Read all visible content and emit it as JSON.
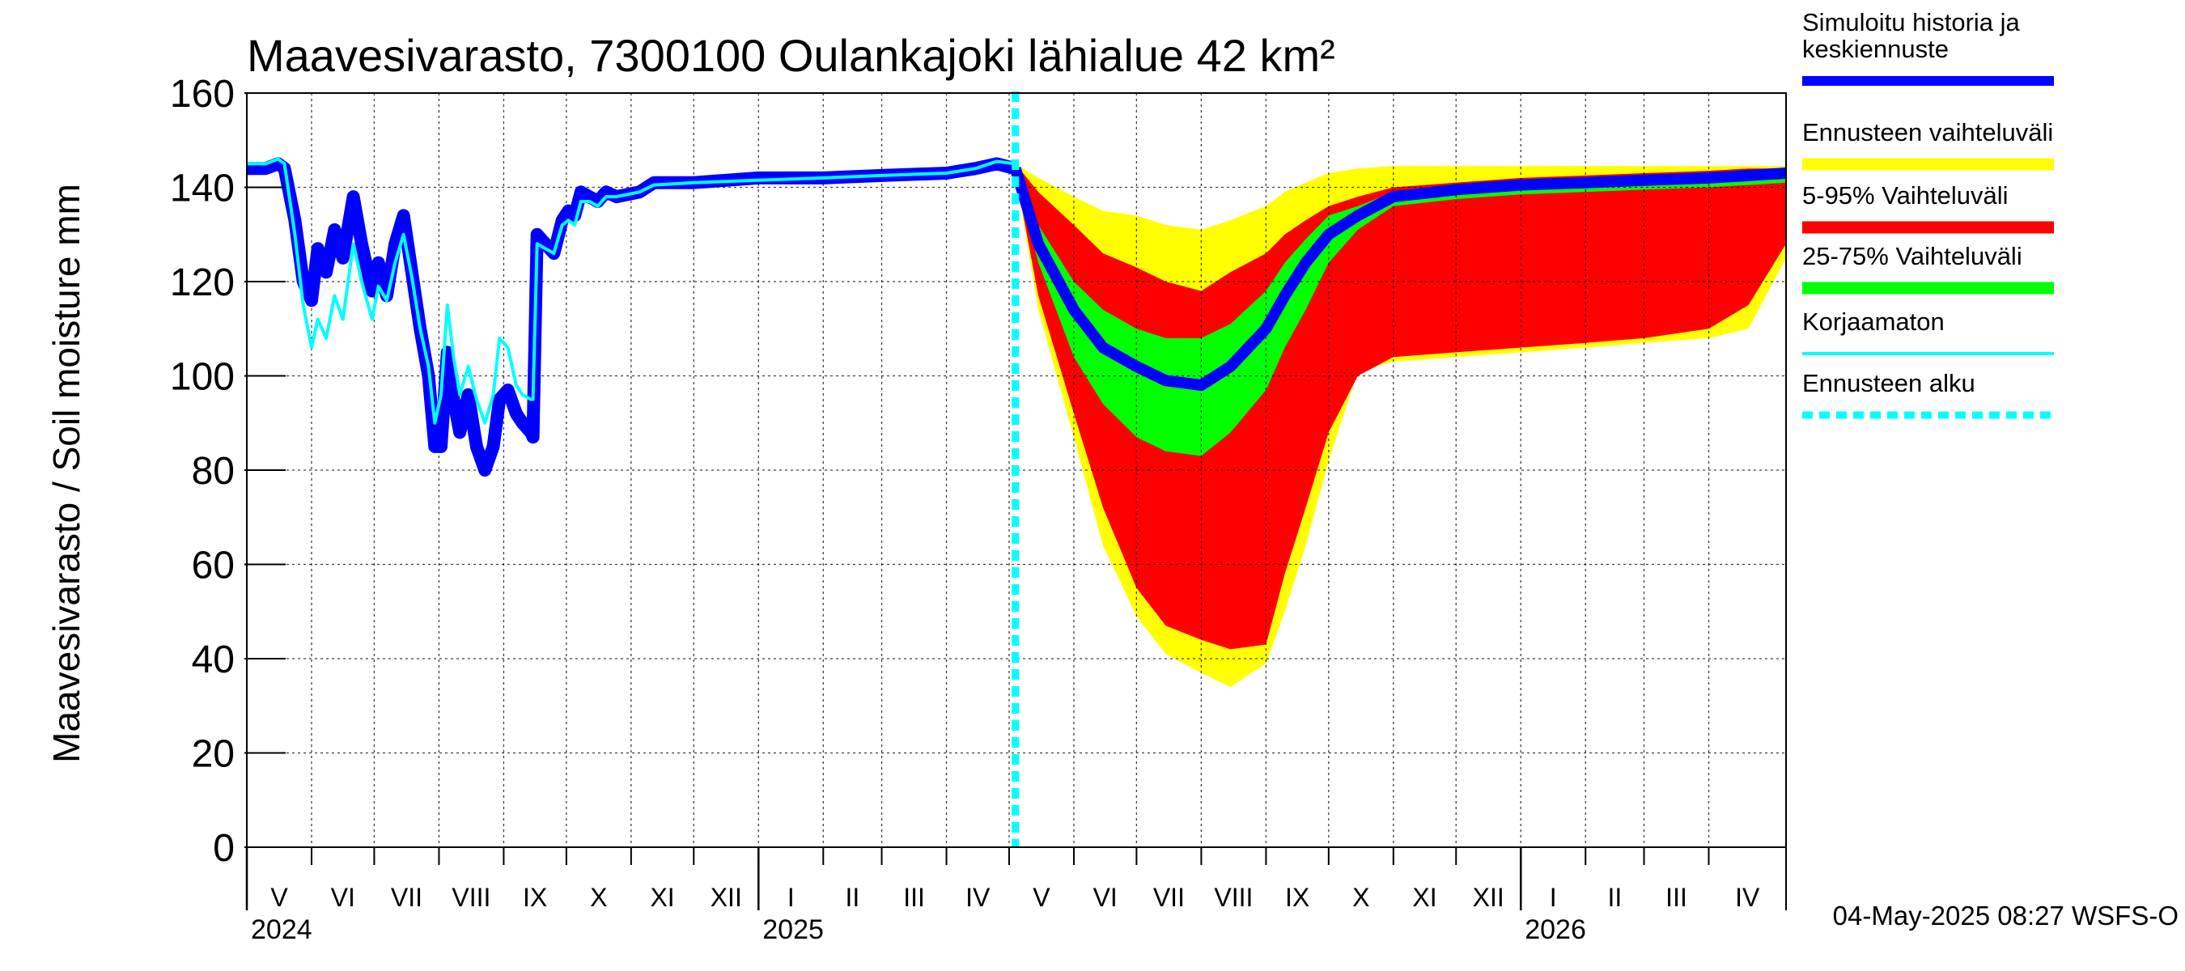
{
  "chart_data": {
    "type": "area",
    "title": "Maavesivarasto, 7300100 Oulankajoki lähialue 42 km²",
    "ylabel": "Maavesivarasto / Soil moisture   mm",
    "ylim": [
      0,
      160
    ],
    "yticks": [
      0,
      20,
      40,
      60,
      80,
      100,
      120,
      140,
      160
    ],
    "xlim": [
      "2024-05-01",
      "2026-05-08"
    ],
    "grid": true,
    "legend_position": "right",
    "months": [
      {
        "date": "2024-05-01",
        "label": "V"
      },
      {
        "date": "2024-06-01",
        "label": "VI"
      },
      {
        "date": "2024-07-01",
        "label": "VII"
      },
      {
        "date": "2024-08-01",
        "label": "VIII"
      },
      {
        "date": "2024-09-01",
        "label": "IX"
      },
      {
        "date": "2024-10-01",
        "label": "X"
      },
      {
        "date": "2024-11-01",
        "label": "XI"
      },
      {
        "date": "2024-12-01",
        "label": "XII"
      },
      {
        "date": "2025-01-01",
        "label": "I"
      },
      {
        "date": "2025-02-01",
        "label": "II"
      },
      {
        "date": "2025-03-01",
        "label": "III"
      },
      {
        "date": "2025-04-01",
        "label": "IV"
      },
      {
        "date": "2025-05-01",
        "label": "V"
      },
      {
        "date": "2025-06-01",
        "label": "VI"
      },
      {
        "date": "2025-07-01",
        "label": "VII"
      },
      {
        "date": "2025-08-01",
        "label": "VIII"
      },
      {
        "date": "2025-09-01",
        "label": "IX"
      },
      {
        "date": "2025-10-01",
        "label": "X"
      },
      {
        "date": "2025-11-01",
        "label": "XI"
      },
      {
        "date": "2025-12-01",
        "label": "XII"
      },
      {
        "date": "2026-01-01",
        "label": "I"
      },
      {
        "date": "2026-02-01",
        "label": "II"
      },
      {
        "date": "2026-03-01",
        "label": "III"
      },
      {
        "date": "2026-04-01",
        "label": "IV"
      }
    ],
    "years": [
      {
        "date": "2024-05-01",
        "label": "2024"
      },
      {
        "date": "2025-01-01",
        "label": "2025"
      },
      {
        "date": "2026-01-01",
        "label": "2026"
      }
    ],
    "forecast_start": "2025-05-04",
    "history": {
      "simulated": [
        [
          "2024-05-01",
          144
        ],
        [
          "2024-05-10",
          144
        ],
        [
          "2024-05-16",
          145
        ],
        [
          "2024-05-19",
          144
        ],
        [
          "2024-05-24",
          133
        ],
        [
          "2024-05-28",
          120
        ],
        [
          "2024-06-01",
          116
        ],
        [
          "2024-06-04",
          127
        ],
        [
          "2024-06-08",
          122
        ],
        [
          "2024-06-12",
          131
        ],
        [
          "2024-06-16",
          125
        ],
        [
          "2024-06-21",
          138
        ],
        [
          "2024-06-25",
          128
        ],
        [
          "2024-06-30",
          118
        ],
        [
          "2024-07-03",
          124
        ],
        [
          "2024-07-07",
          117
        ],
        [
          "2024-07-11",
          128
        ],
        [
          "2024-07-15",
          134
        ],
        [
          "2024-07-19",
          122
        ],
        [
          "2024-07-23",
          110
        ],
        [
          "2024-07-27",
          100
        ],
        [
          "2024-07-30",
          85
        ],
        [
          "2024-08-02",
          85
        ],
        [
          "2024-08-05",
          105
        ],
        [
          "2024-08-08",
          95
        ],
        [
          "2024-08-11",
          88
        ],
        [
          "2024-08-15",
          96
        ],
        [
          "2024-08-19",
          85
        ],
        [
          "2024-08-23",
          80
        ],
        [
          "2024-08-27",
          85
        ],
        [
          "2024-08-30",
          95
        ],
        [
          "2024-09-03",
          97
        ],
        [
          "2024-09-07",
          92
        ],
        [
          "2024-09-10",
          90
        ],
        [
          "2024-09-14",
          88
        ],
        [
          "2024-09-15",
          87
        ],
        [
          "2024-09-17",
          130
        ],
        [
          "2024-09-21",
          128
        ],
        [
          "2024-09-25",
          126
        ],
        [
          "2024-09-29",
          133
        ],
        [
          "2024-10-02",
          135
        ],
        [
          "2024-10-05",
          134
        ],
        [
          "2024-10-08",
          139
        ],
        [
          "2024-10-12",
          138
        ],
        [
          "2024-10-16",
          137
        ],
        [
          "2024-10-20",
          139
        ],
        [
          "2024-10-25",
          138
        ],
        [
          "2024-11-05",
          139
        ],
        [
          "2024-11-12",
          141
        ],
        [
          "2024-12-01",
          141
        ],
        [
          "2025-01-01",
          142
        ],
        [
          "2025-02-01",
          142
        ],
        [
          "2025-03-01",
          142.5
        ],
        [
          "2025-04-01",
          143
        ],
        [
          "2025-04-15",
          144
        ],
        [
          "2025-04-25",
          145
        ],
        [
          "2025-05-04",
          144
        ]
      ],
      "uncorrected": [
        [
          "2024-05-01",
          145
        ],
        [
          "2024-05-10",
          145
        ],
        [
          "2024-05-16",
          146
        ],
        [
          "2024-05-19",
          145
        ],
        [
          "2024-05-24",
          130
        ],
        [
          "2024-05-28",
          115
        ],
        [
          "2024-06-01",
          106
        ],
        [
          "2024-06-04",
          112
        ],
        [
          "2024-06-08",
          108
        ],
        [
          "2024-06-12",
          117
        ],
        [
          "2024-06-16",
          112
        ],
        [
          "2024-06-21",
          128
        ],
        [
          "2024-06-25",
          120
        ],
        [
          "2024-06-30",
          112
        ],
        [
          "2024-07-03",
          119
        ],
        [
          "2024-07-07",
          116
        ],
        [
          "2024-07-11",
          124
        ],
        [
          "2024-07-15",
          130
        ],
        [
          "2024-07-19",
          121
        ],
        [
          "2024-07-23",
          110
        ],
        [
          "2024-07-27",
          102
        ],
        [
          "2024-07-30",
          90
        ],
        [
          "2024-08-02",
          96
        ],
        [
          "2024-08-05",
          115
        ],
        [
          "2024-08-08",
          104
        ],
        [
          "2024-08-11",
          96
        ],
        [
          "2024-08-15",
          102
        ],
        [
          "2024-08-19",
          95
        ],
        [
          "2024-08-23",
          90
        ],
        [
          "2024-08-27",
          96
        ],
        [
          "2024-08-30",
          108
        ],
        [
          "2024-09-03",
          106
        ],
        [
          "2024-09-07",
          98
        ],
        [
          "2024-09-10",
          96
        ],
        [
          "2024-09-14",
          95
        ],
        [
          "2024-09-15",
          95
        ],
        [
          "2024-09-17",
          128
        ],
        [
          "2024-09-21",
          127
        ],
        [
          "2024-09-25",
          126
        ],
        [
          "2024-09-29",
          132
        ],
        [
          "2024-10-02",
          133
        ],
        [
          "2024-10-05",
          132
        ],
        [
          "2024-10-08",
          137
        ],
        [
          "2024-10-12",
          137
        ],
        [
          "2024-10-16",
          136
        ],
        [
          "2024-10-20",
          138
        ],
        [
          "2024-10-25",
          138
        ],
        [
          "2024-11-05",
          139
        ],
        [
          "2024-11-12",
          140.5
        ],
        [
          "2024-12-01",
          141
        ],
        [
          "2025-01-01",
          141.5
        ],
        [
          "2025-02-01",
          142
        ],
        [
          "2025-03-01",
          142.5
        ],
        [
          "2025-04-01",
          143
        ],
        [
          "2025-04-15",
          144
        ],
        [
          "2025-04-25",
          145.5
        ],
        [
          "2025-05-04",
          145
        ]
      ]
    },
    "forecast": {
      "dates": [
        "2025-05-04",
        "2025-05-15",
        "2025-06-01",
        "2025-06-15",
        "2025-07-01",
        "2025-07-15",
        "2025-08-01",
        "2025-08-15",
        "2025-09-01",
        "2025-09-10",
        "2025-09-20",
        "2025-10-01",
        "2025-10-15",
        "2025-11-01",
        "2025-12-01",
        "2026-01-01",
        "2026-02-01",
        "2026-03-01",
        "2026-04-01",
        "2026-04-20",
        "2026-05-08"
      ],
      "max": [
        145,
        142,
        138,
        135,
        134,
        132,
        131,
        133,
        136,
        139,
        141,
        143,
        144,
        144.5,
        144.5,
        144.5,
        144.5,
        144.5,
        144.5,
        144.5,
        144.5
      ],
      "p95": [
        145,
        139,
        132,
        126,
        123,
        120,
        118,
        122,
        126,
        130,
        133,
        136,
        138,
        140,
        141,
        142,
        142.5,
        143,
        143.5,
        144,
        144
      ],
      "p75": [
        144,
        132,
        120,
        114,
        110,
        108,
        108,
        111,
        118,
        124,
        129,
        134,
        136,
        139,
        140,
        141,
        141.5,
        142,
        142.5,
        143,
        143
      ],
      "median": [
        144,
        128,
        114,
        106,
        102,
        99,
        98,
        102,
        110,
        117,
        124,
        130,
        134,
        138,
        139.5,
        140.5,
        141,
        141.5,
        142,
        142.5,
        143
      ],
      "p25": [
        143,
        124,
        104,
        94,
        87,
        84,
        83,
        88,
        97,
        106,
        114,
        124,
        131,
        136,
        137.5,
        138.5,
        139,
        139.5,
        140,
        140.5,
        141
      ],
      "p05": [
        143,
        117,
        92,
        72,
        55,
        47,
        44,
        42,
        43,
        58,
        72,
        88,
        100,
        104,
        105,
        106,
        107,
        108,
        110,
        115,
        128
      ],
      "min": [
        143,
        114,
        87,
        64,
        49,
        41,
        37,
        34,
        39,
        50,
        64,
        82,
        101,
        103,
        104,
        105,
        106,
        107,
        108,
        110,
        125
      ]
    },
    "legend": [
      {
        "label": "Simuloitu historia ja\nkeskiennuste",
        "color": "#0000ff"
      },
      {
        "label": "Ennusteen vaihteluväli",
        "color": "#ffff00"
      },
      {
        "label": "5-95% Vaihteluväli",
        "color": "#ff0000"
      },
      {
        "label": "25-75% Vaihteluväli",
        "color": "#00ff00"
      },
      {
        "label": "Korjaamaton",
        "color": "#00ffff"
      },
      {
        "label": "Ennusteen alku",
        "color": "#00ffff"
      }
    ],
    "colors": {
      "simulated": "#0000ff",
      "simulated_halo": "#0000ff",
      "range": "#ffff00",
      "p5_95": "#ff0000",
      "p25_75": "#00ff00",
      "uncorrected": "#00ffff",
      "forecast_start": "#00ffff",
      "grid": "#000000"
    }
  },
  "footer": {
    "timestamp": "04-May-2025 08:27 WSFS-O"
  }
}
